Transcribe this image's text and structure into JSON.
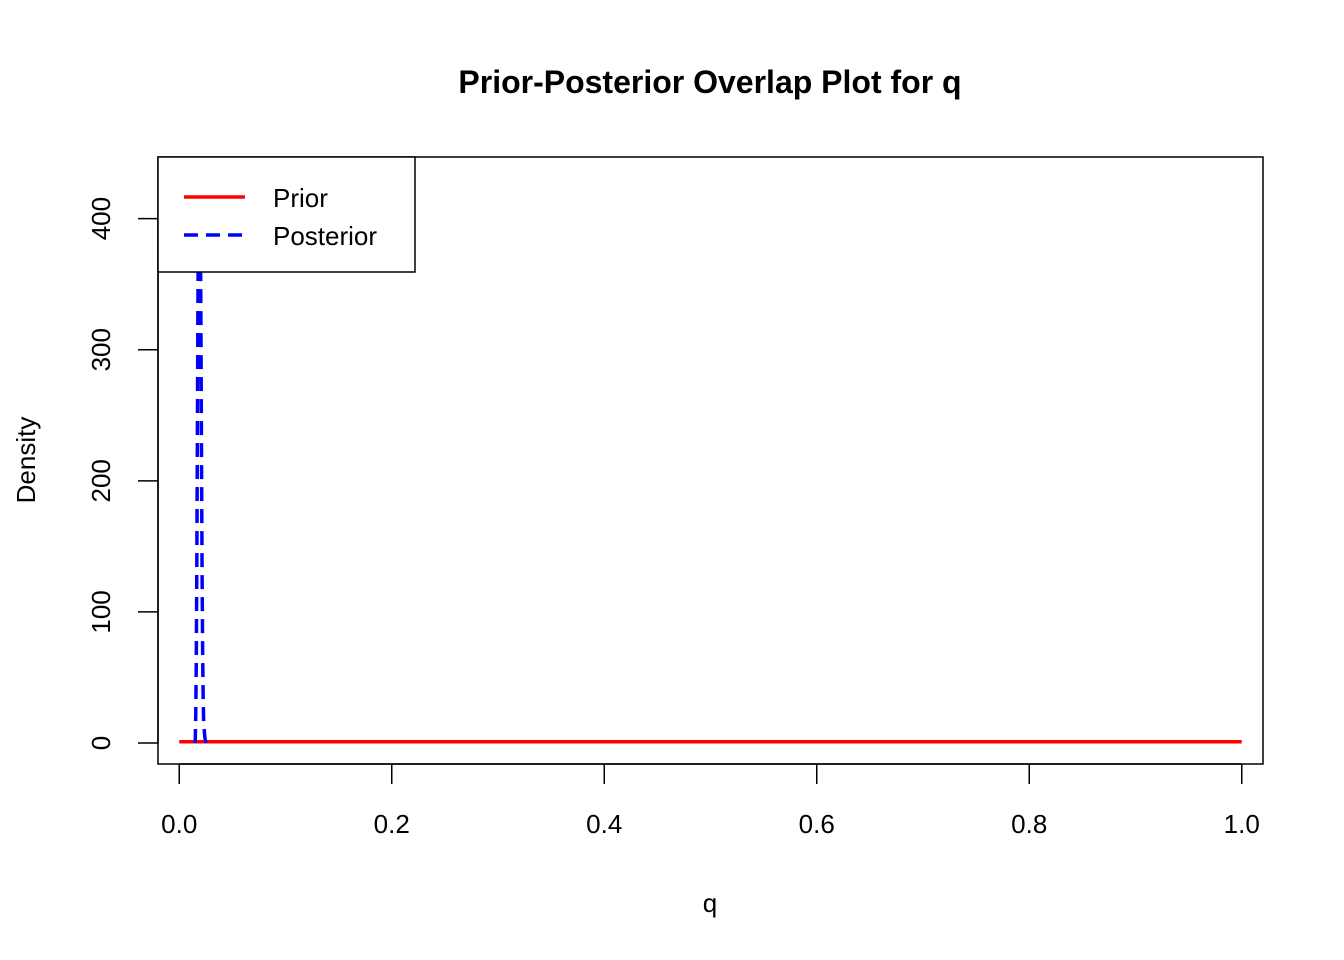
{
  "chart_data": {
    "type": "line",
    "title": "Prior-Posterior Overlap Plot for q",
    "xlabel": "q",
    "ylabel": "Density",
    "xlim": [
      -0.02,
      1.02
    ],
    "ylim": [
      -16,
      447
    ],
    "xticks": [
      0.0,
      0.2,
      0.4,
      0.6,
      0.8,
      1.0
    ],
    "xtick_labels": [
      "0.0",
      "0.2",
      "0.4",
      "0.6",
      "0.8",
      "1.0"
    ],
    "yticks": [
      0,
      100,
      200,
      300,
      400
    ],
    "ytick_labels": [
      "0",
      "100",
      "200",
      "300",
      "400"
    ],
    "grid": false,
    "legend": {
      "position": "top-left",
      "entries": [
        {
          "label": "Prior",
          "color": "#ff0000",
          "style": "solid"
        },
        {
          "label": "Posterior",
          "color": "#0000ff",
          "style": "dashed"
        }
      ]
    },
    "series": [
      {
        "name": "Prior",
        "color": "#ff0000",
        "style": "solid",
        "x": [
          0.0,
          1.0
        ],
        "y": [
          1,
          1
        ]
      },
      {
        "name": "Posterior",
        "color": "#0000ff",
        "style": "dashed",
        "x": [
          0.015,
          0.0155,
          0.016,
          0.0165,
          0.017,
          0.0175,
          0.018,
          0.0185,
          0.019,
          0.0195,
          0.02,
          0.0205,
          0.021,
          0.0215,
          0.022,
          0.0225,
          0.023,
          0.024,
          0.025
        ],
        "y": [
          0,
          20,
          60,
          130,
          220,
          320,
          400,
          440,
          450,
          430,
          380,
          300,
          210,
          130,
          70,
          35,
          15,
          5,
          0
        ]
      }
    ]
  }
}
